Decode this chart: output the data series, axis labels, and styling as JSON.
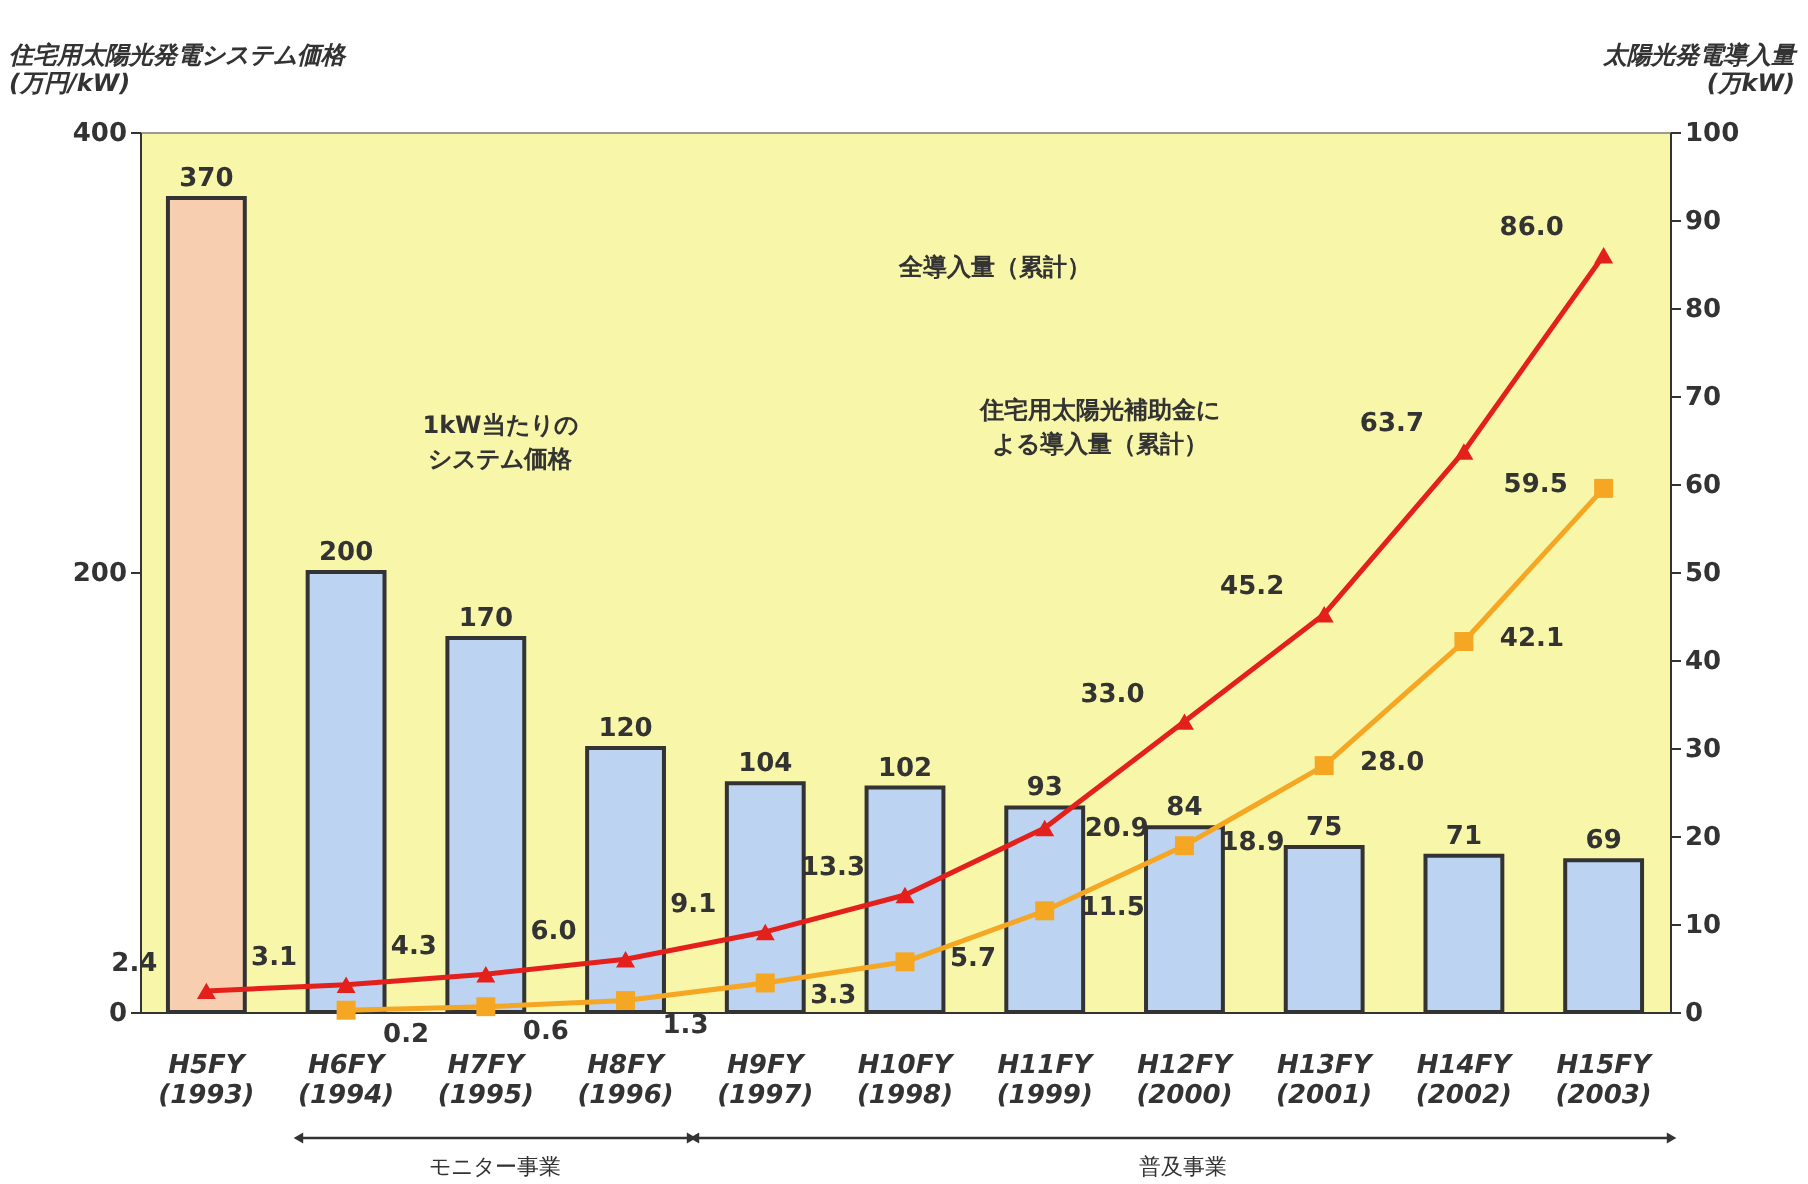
{
  "chart_data": {
    "type": "bar",
    "ylabel": "住宅用太陽光発電システム価格\n(万円/kW)",
    "y2label": "太陽光発電導入量\n(万kW)",
    "categories": [
      "H5FY\n(1993)",
      "H6FY\n(1994)",
      "H7FY\n(1995)",
      "H8FY\n(1996)",
      "H9FY\n(1997)",
      "H10FY\n(1998)",
      "H11FY\n(1999)",
      "H12FY\n(2000)",
      "H13FY\n(2001)",
      "H14FY\n(2002)",
      "H15FY\n(2003)"
    ],
    "series": [
      {
        "colors": [
          "#f7cfb0",
          "#bcd4f2",
          "#bcd4f2",
          "#bcd4f2",
          "#bcd4f2",
          "#bcd4f2",
          "#bcd4f2",
          "#bcd4f2",
          "#bcd4f2",
          "#bcd4f2",
          "#bcd4f2"
        ],
        "values": [
          370,
          200,
          170,
          120,
          104,
          102,
          93,
          84,
          75,
          71,
          69
        ]
      },
      {
        "type": "line",
        "axis": "y2",
        "color": "#e3201b",
        "marker": "triangle",
        "values": [
          2.4,
          3.1,
          4.3,
          6.0,
          9.1,
          13.3,
          20.9,
          33.0,
          45.2,
          63.7,
          86.0
        ],
        "value_labels": [
          "2.4",
          "3.1",
          "4.3",
          "6.0",
          "9.1",
          "13.3",
          "20.9",
          "33.0",
          "45.2",
          "63.7",
          "86.0"
        ]
      },
      {
        "type": "line",
        "axis": "y2",
        "color": "#f5a623",
        "marker": "square",
        "values": [
          null,
          0.2,
          0.6,
          1.3,
          3.3,
          5.7,
          11.5,
          18.9,
          28.0,
          42.1,
          59.5
        ],
        "value_labels": [
          null,
          "0.2",
          "0.6",
          "1.3",
          "3.3",
          "5.7",
          "11.5",
          "18.9",
          "28.0",
          "42.1",
          "59.5"
        ]
      }
    ],
    "ylim": [
      0,
      400
    ],
    "yticks": [
      0,
      200,
      400
    ],
    "y2lim": [
      0,
      100
    ],
    "y2ticks": [
      0,
      10,
      20,
      30,
      40,
      50,
      60,
      70,
      80,
      90,
      100
    ],
    "data_labels": true,
    "annotations": [
      "1kW当たりの",
      "システム価格",
      "全導入量（累計）",
      "住宅用太陽光補助金に",
      "よる導入量（累計）",
      "モニター事業",
      "普及事業"
    ]
  }
}
